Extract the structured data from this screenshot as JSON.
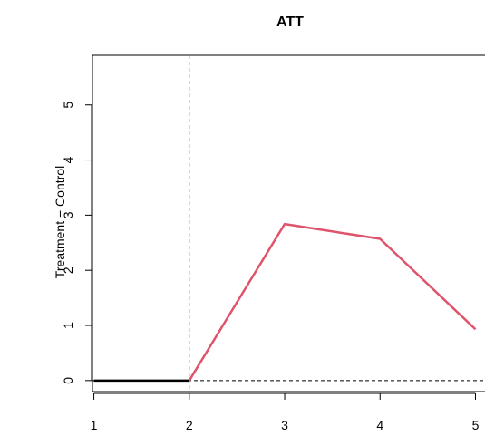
{
  "chart_data": {
    "type": "line",
    "title": "ATT",
    "xlabel": "",
    "ylabel": "Treatment − Control",
    "xlim": [
      0.985,
      5.1
    ],
    "ylim": [
      -0.2,
      5.9
    ],
    "x_ticks": [
      1,
      2,
      3,
      4,
      5
    ],
    "y_ticks": [
      0,
      1,
      2,
      3,
      4,
      5
    ],
    "grid": false,
    "series": [
      {
        "role": "pre-treatment",
        "color": "#000000",
        "x": [
          1,
          2
        ],
        "y": [
          0,
          0
        ]
      },
      {
        "role": "post-treatment",
        "color": "#DF536B",
        "x": [
          2,
          3,
          4,
          5
        ],
        "y": [
          0,
          2.84,
          2.57,
          0.93
        ]
      }
    ],
    "reference_lines": [
      {
        "orientation": "horizontal",
        "value": 0,
        "style": "dashed",
        "color": "#000000"
      },
      {
        "orientation": "vertical",
        "value": 2,
        "style": "dashed",
        "color": "#DF536B"
      }
    ]
  }
}
